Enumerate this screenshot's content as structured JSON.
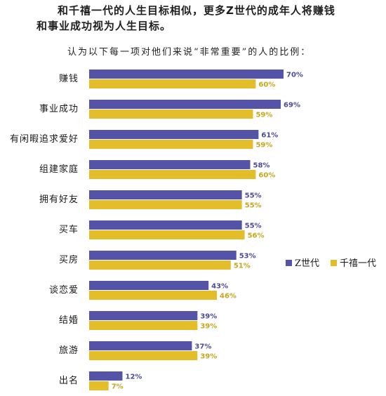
{
  "chart_data": {
    "type": "bar",
    "orientation": "horizontal",
    "title_line1": "和千禧一代的人生目标相似，更多Z世代的成年人将赚钱",
    "title_line2": "和事业成功视为人生目标。",
    "subtitle": "认为以下每一项对他们来说“非常重要”的人的比例：",
    "categories": [
      "赚钱",
      "事业成功",
      "有闲暇追求爱好",
      "组建家庭",
      "拥有好友",
      "买车",
      "买房",
      "谈恋爱",
      "结婚",
      "旅游",
      "出名"
    ],
    "series": [
      {
        "name": "Z世代",
        "color": "#5553a8",
        "values": [
          70,
          69,
          61,
          58,
          55,
          55,
          53,
          43,
          39,
          37,
          12
        ]
      },
      {
        "name": "千禧一代",
        "color": "#e3be2a",
        "values": [
          60,
          59,
          59,
          60,
          55,
          56,
          51,
          46,
          39,
          39,
          7
        ]
      }
    ],
    "value_suffix": "%",
    "legend_position": "right",
    "xlim": [
      0,
      70
    ],
    "grid": false
  },
  "colors": {
    "z_label": "#4b4a9c",
    "m_label": "#c9a51a"
  }
}
